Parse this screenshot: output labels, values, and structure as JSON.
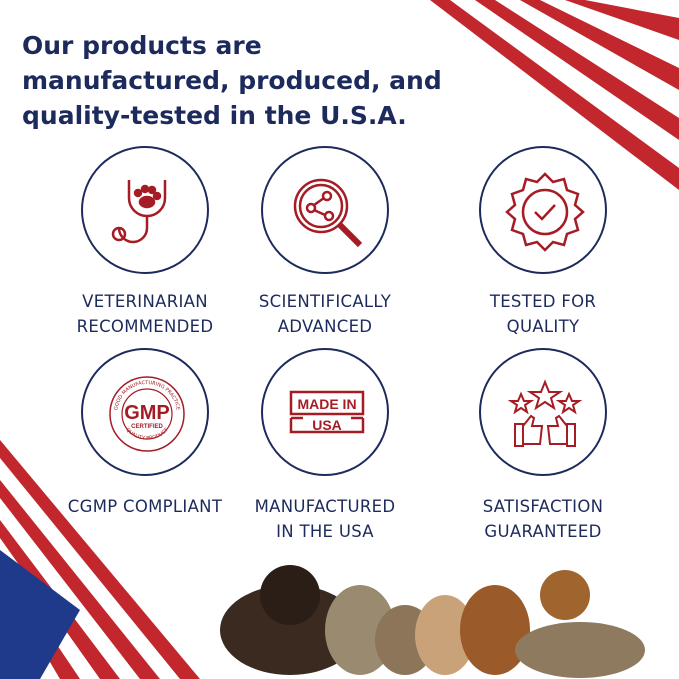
{
  "headline": "Our products are manufactured, produced, and quality-tested in the U.S.A.",
  "colors": {
    "navy": "#1d2a5c",
    "red": "#a51c24"
  },
  "features": [
    {
      "icon": "stethoscope-paw-icon",
      "line1": "VETERINARIAN",
      "line2": "RECOMMENDED"
    },
    {
      "icon": "magnifier-molecule-icon",
      "line1": "SCIENTIFICALLY",
      "line2": "ADVANCED"
    },
    {
      "icon": "badge-check-icon",
      "line1": "TESTED FOR",
      "line2": "QUALITY"
    },
    {
      "icon": "gmp-seal-icon",
      "line1": "CGMP COMPLIANT",
      "line2": ""
    },
    {
      "icon": "made-in-usa-stamp-icon",
      "line1": "MANUFACTURED",
      "line2": "IN THE USA"
    },
    {
      "icon": "thumbs-up-stars-icon",
      "line1": "SATISFACTION",
      "line2": "GUARANTEED"
    }
  ],
  "seal": {
    "ring_top": "GOOD MANUFACTURING PRACTICE",
    "main": "GMP",
    "sub": "CERTIFIED",
    "ring_bottom": "QUALITY PRODUCT"
  },
  "stamp": {
    "line1": "MADE IN",
    "line2": "USA"
  }
}
